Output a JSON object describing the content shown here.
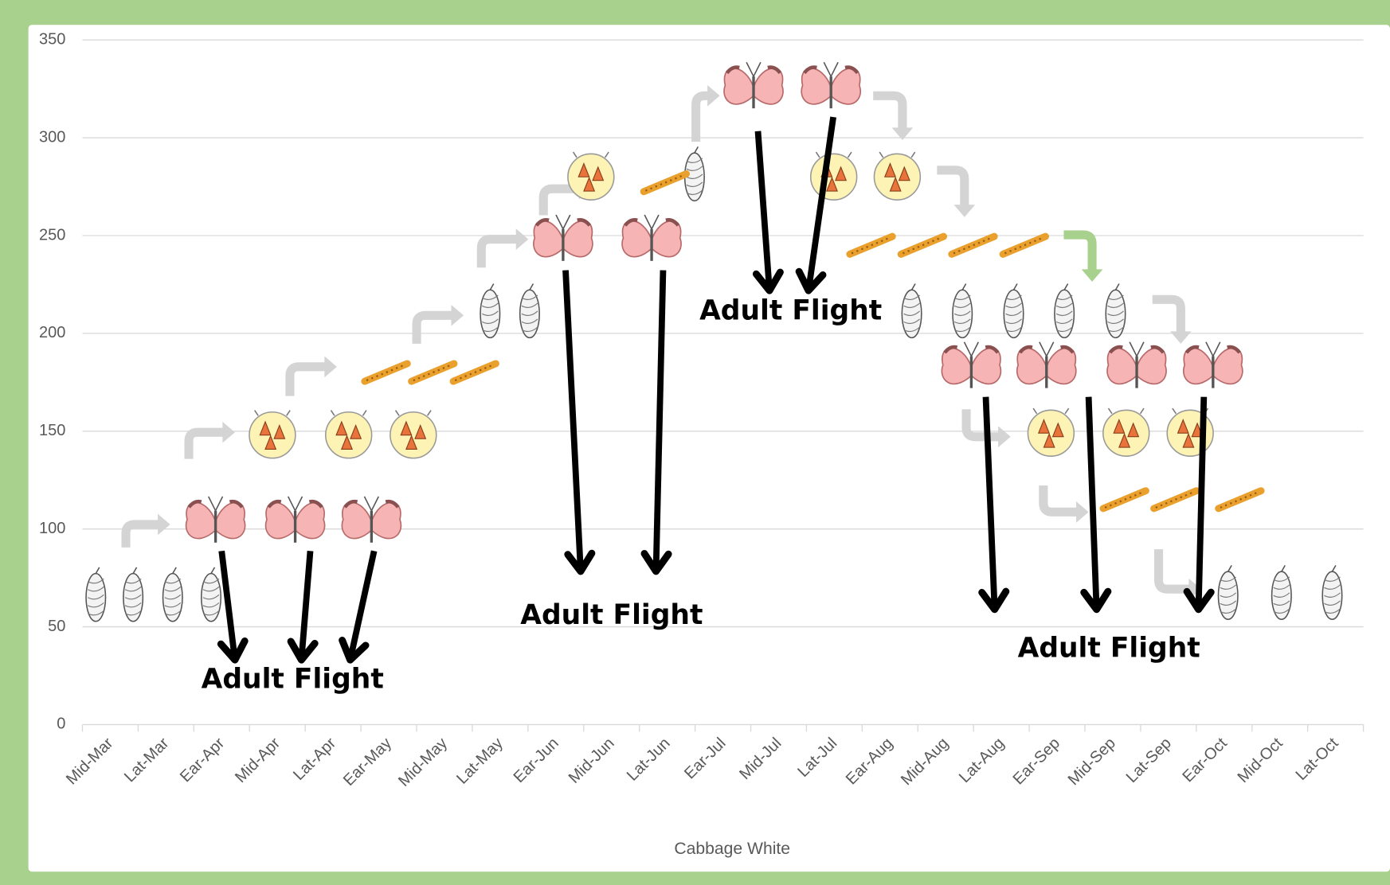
{
  "chart_data": {
    "type": "scatter",
    "x_title": "Cabbage White",
    "categories": [
      "Mid-Mar",
      "Lat-Mar",
      "Ear-Apr",
      "Mid-Apr",
      "Lat-Apr",
      "Ear-May",
      "Mid-May",
      "Lat-May",
      "Ear-Jun",
      "Mid-Jun",
      "Lat-Jun",
      "Ear-Jul",
      "Mid-Jul",
      "Lat-Jul",
      "Ear-Aug",
      "Mid-Aug",
      "Lat-Aug",
      "Ear-Sep",
      "Mid-Sep",
      "Lat-Sep",
      "Ear-Oct",
      "Mid-Oct",
      "Lat-Oct"
    ],
    "xlim": [
      -0.5,
      22.5
    ],
    "ylim": [
      0,
      350
    ],
    "yticks": [
      0,
      50,
      100,
      150,
      200,
      250,
      300,
      350
    ],
    "grid": true,
    "annotations": [
      "Adult Flight",
      "Adult Flight",
      "Adult Flight",
      "Adult Flight"
    ],
    "series": [
      {
        "marker": "pupa",
        "x": [
          -0.26,
          0.41,
          1.12,
          1.81,
          6.82,
          7.53,
          10.49,
          14.39,
          15.3,
          16.22,
          17.13,
          18.05,
          20.07,
          21.03,
          21.94
        ],
        "values": [
          65,
          65,
          65,
          65,
          210,
          210,
          280,
          210,
          210,
          210,
          210,
          210,
          66,
          66,
          66
        ]
      },
      {
        "marker": "adult",
        "x": [
          1.89,
          3.32,
          4.69,
          8.13,
          9.72,
          11.55,
          12.94,
          15.46,
          16.81,
          18.43,
          19.8
        ],
        "values": [
          103,
          103,
          103,
          247,
          247,
          325,
          325,
          182,
          182,
          182,
          182
        ]
      },
      {
        "marker": "egg",
        "x": [
          2.91,
          4.28,
          5.44,
          8.63,
          12.99,
          14.13,
          16.89,
          18.24,
          19.39
        ],
        "values": [
          148,
          148,
          148,
          280,
          280,
          280,
          149,
          149,
          149
        ]
      },
      {
        "marker": "larva",
        "x": [
          4.95,
          5.79,
          6.54,
          9.96,
          13.66,
          14.58,
          15.49,
          16.41,
          18.21,
          19.12,
          20.28
        ],
        "values": [
          180,
          180,
          180,
          277,
          245,
          245,
          245,
          245,
          115,
          115,
          115
        ]
      }
    ]
  }
}
